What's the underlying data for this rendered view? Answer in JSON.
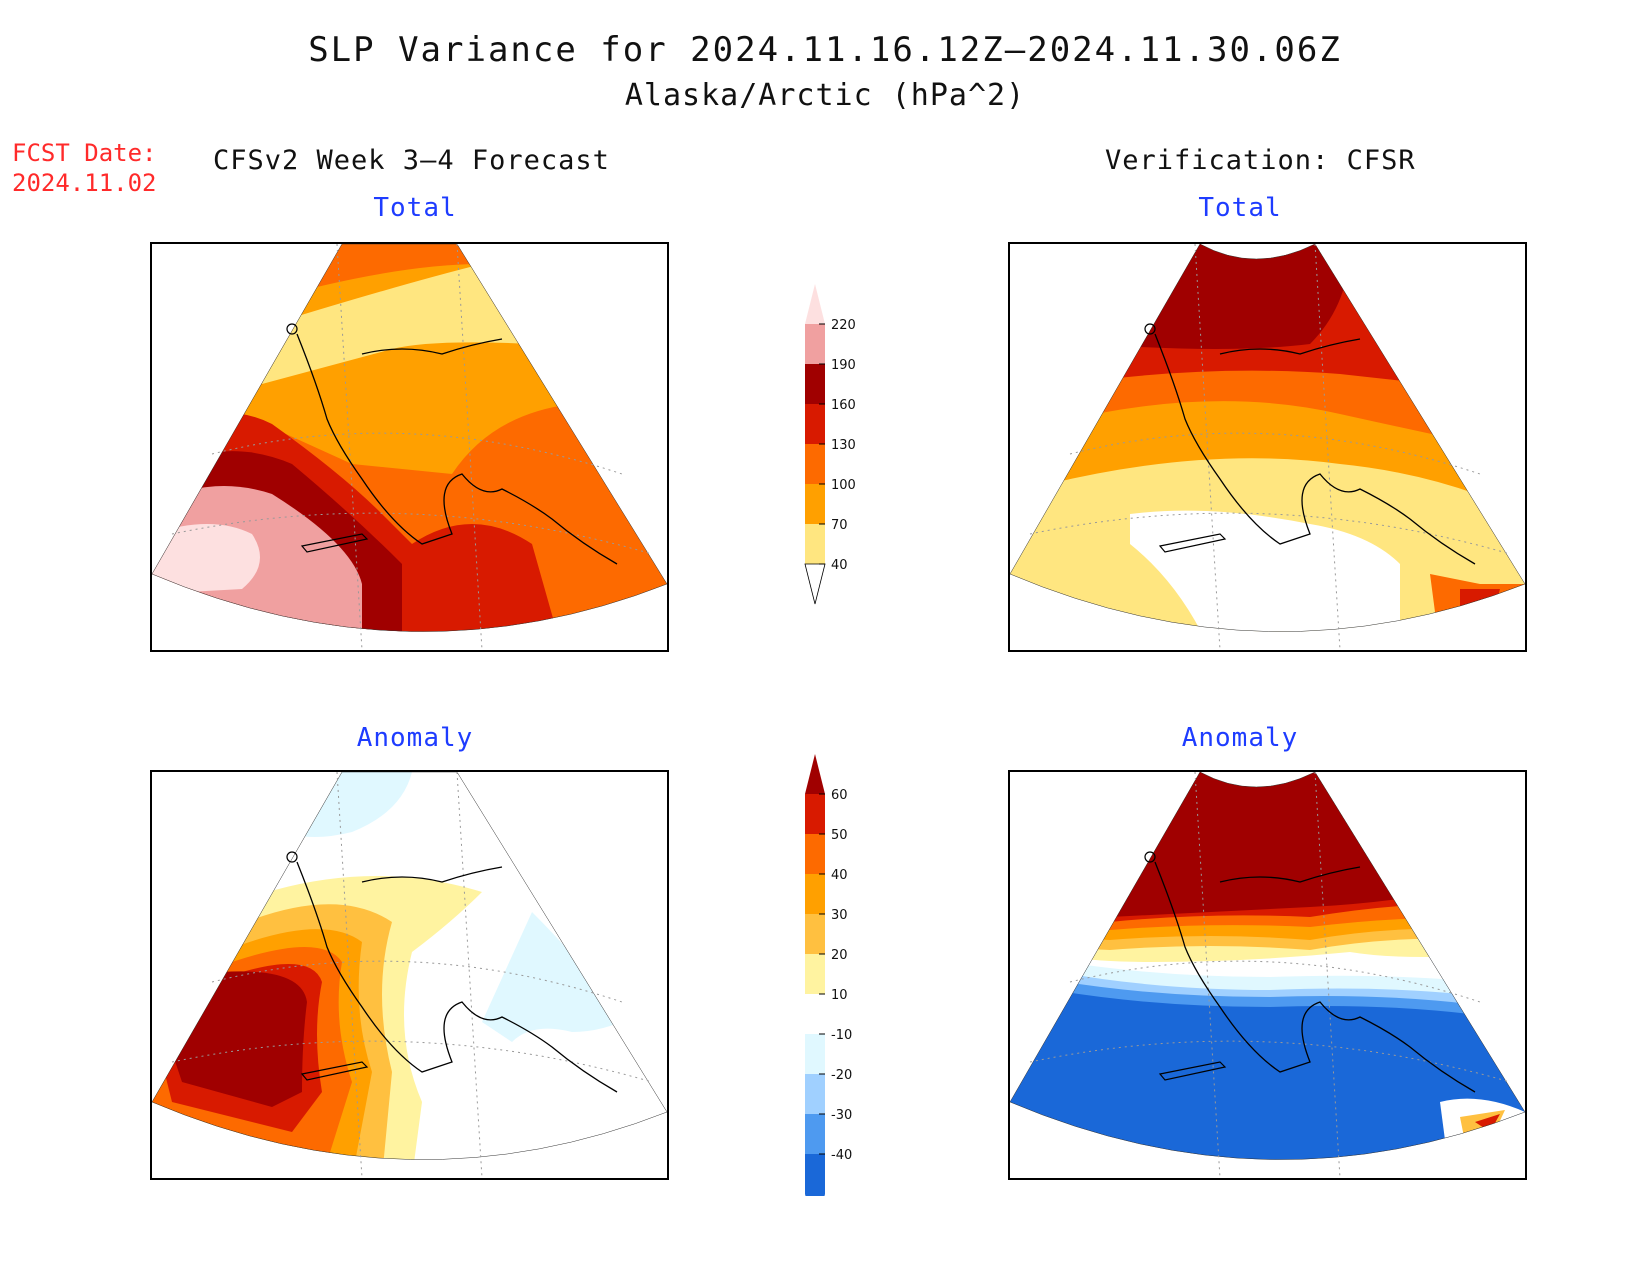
{
  "header": {
    "title": "SLP Variance for 2024.11.16.12Z–2024.11.30.06Z",
    "subtitle": "Alaska/Arctic (hPa^2)"
  },
  "forecast_date": {
    "label": "FCST Date:",
    "value": "2024.11.02"
  },
  "columns": {
    "forecast": "CFSv2 Week 3–4 Forecast",
    "verification": "Verification: CFSR"
  },
  "panels": {
    "forecast_total": "Total",
    "verification_total": "Total",
    "forecast_anomaly": "Anomaly",
    "verification_anomaly": "Anomaly"
  },
  "colorbars": {
    "total": {
      "labels": [
        "220",
        "190",
        "160",
        "130",
        "100",
        "70",
        "40"
      ],
      "colors": [
        "#fde0e0",
        "#f0a0a0",
        "#a00000",
        "#d81a00",
        "#fd6a00",
        "#ffa000",
        "#ffe680"
      ]
    },
    "anomaly": {
      "labels": [
        "60",
        "50",
        "40",
        "30",
        "20",
        "10",
        "-10",
        "-20",
        "-30",
        "-40"
      ],
      "colors": [
        "#a00000",
        "#d81a00",
        "#fd6a00",
        "#ffa000",
        "#ffc040",
        "#fff3a0",
        "#ffffff",
        "#e0f8ff",
        "#a0d0ff",
        "#4e9af0",
        "#1a68d8"
      ]
    }
  }
}
